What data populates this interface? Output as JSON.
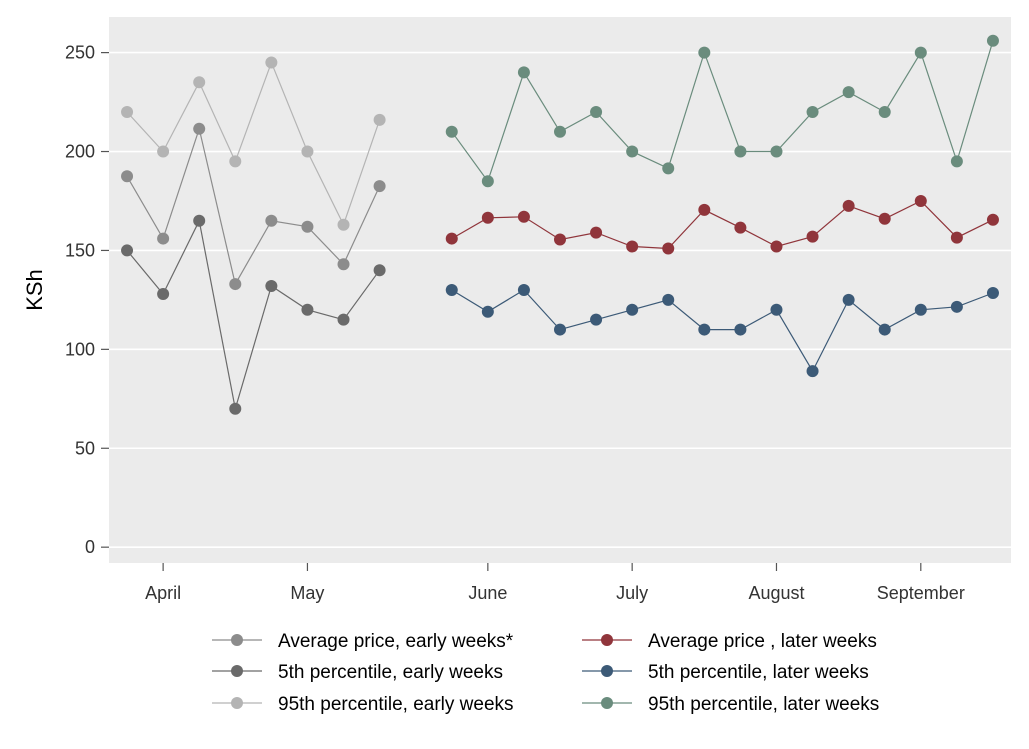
{
  "chart_data": {
    "type": "line",
    "title": "",
    "xlabel": "",
    "ylabel": "KSh",
    "ylim": [
      -8,
      268
    ],
    "y_ticks": [
      0,
      50,
      100,
      150,
      200,
      250
    ],
    "x_ticks": [
      {
        "label": "April",
        "x": 1
      },
      {
        "label": "May",
        "x": 5
      },
      {
        "label": "June",
        "x": 10
      },
      {
        "label": "July",
        "x": 14
      },
      {
        "label": "August",
        "x": 18
      },
      {
        "label": "September",
        "x": 22
      }
    ],
    "xlim": [
      -0.5,
      24.5
    ],
    "grid": true,
    "legend_position": "bottom",
    "series": [
      {
        "name": "Average price, early weeks*",
        "color": "#8c8c8c",
        "x": [
          0,
          1,
          2,
          3,
          4,
          5,
          6,
          7
        ],
        "values": [
          187.5,
          156,
          211.5,
          133,
          165,
          162,
          143,
          182.5
        ]
      },
      {
        "name": "5th percentile, early weeks",
        "color": "#6a6a6a",
        "x": [
          0,
          1,
          2,
          3,
          4,
          5,
          6,
          7
        ],
        "values": [
          150,
          128,
          165,
          70,
          132,
          120,
          115,
          140
        ]
      },
      {
        "name": "95th percentile, early weeks",
        "color": "#b4b4b4",
        "x": [
          0,
          1,
          2,
          3,
          4,
          5,
          6,
          7
        ],
        "values": [
          220,
          200,
          235,
          195,
          245,
          200,
          163,
          216
        ]
      },
      {
        "name": "Average price , later weeks",
        "color": "#90353b",
        "x": [
          9,
          10,
          11,
          12,
          13,
          14,
          15,
          16,
          17,
          18,
          19,
          20,
          21,
          22,
          23,
          24
        ],
        "values": [
          156,
          166.5,
          167,
          155.5,
          159,
          152,
          151,
          170.5,
          161.5,
          152,
          157,
          172.5,
          166,
          175,
          156.5,
          165.5
        ]
      },
      {
        "name": "5th percentile, later weeks",
        "color": "#3c5a77",
        "x": [
          9,
          10,
          11,
          12,
          13,
          14,
          15,
          16,
          17,
          18,
          19,
          20,
          21,
          22,
          23,
          24
        ],
        "values": [
          130,
          119,
          130,
          110,
          115,
          120,
          125,
          110,
          110,
          120,
          89,
          125,
          110,
          120,
          121.5,
          128.5
        ]
      },
      {
        "name": "95th percentile, later weeks",
        "color": "#6a8c7d",
        "x": [
          9,
          10,
          11,
          12,
          13,
          14,
          15,
          16,
          17,
          18,
          19,
          20,
          21,
          22,
          23,
          24
        ],
        "values": [
          210,
          185,
          240,
          210,
          220,
          200,
          191.5,
          250,
          200,
          200,
          220,
          230,
          220,
          250,
          195,
          256
        ]
      }
    ]
  }
}
